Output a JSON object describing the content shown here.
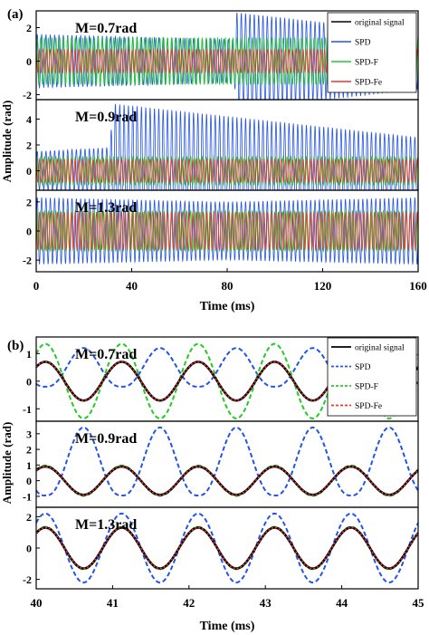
{
  "figure": {
    "colors": {
      "original": "#000000",
      "spd": "#2354e6",
      "spdf": "#22cc22",
      "spdfe": "#ee3333"
    },
    "legend_labels": [
      "original signal",
      "SPD",
      "SPD-F",
      "SPD-Fe"
    ]
  },
  "chart_data": [
    {
      "type": "line",
      "label": "(a)",
      "xlabel": "Time (ms)",
      "ylabel": "Amplitude (rad)",
      "xlim": [
        0,
        160
      ],
      "xticks": [
        "0",
        "40",
        "80",
        "120",
        "160"
      ],
      "legend": [
        "original signal",
        "SPD",
        "SPD-F",
        "SPD-Fe"
      ],
      "legend_position": "top-right",
      "panels": [
        {
          "title": "M=0.7rad",
          "ylim": [
            -2.3,
            3
          ],
          "yticks": [
            "-2",
            "0",
            "2"
          ],
          "series": [
            {
              "name": "SPD",
              "amplitude_envelope": [
                [
                  0,
                  1.6
                ],
                [
                  83,
                  1.3
                ],
                [
                  84,
                  2.9
                ],
                [
                  160,
                  1.7
                ]
              ]
            },
            {
              "name": "SPD-F",
              "amplitude": 1.4
            },
            {
              "name": "SPD-Fe",
              "amplitude": 0.7
            }
          ]
        },
        {
          "title": "M=0.9rad",
          "ylim": [
            -1.5,
            5.5
          ],
          "yticks": [
            "0",
            "2",
            "4"
          ],
          "series": [
            {
              "name": "SPD",
              "amplitude_envelope": [
                [
                  0,
                  1.5
                ],
                [
                  31,
                  1.8
                ],
                [
                  32,
                  5.2
                ],
                [
                  160,
                  2.6
                ]
              ]
            },
            {
              "name": "SPD-F",
              "amplitude": 1.1
            },
            {
              "name": "SPD-Fe",
              "amplitude": 0.9
            }
          ]
        },
        {
          "title": "M=1.3rad",
          "ylim": [
            -2.8,
            2.8
          ],
          "yticks": [
            "-2",
            "0",
            "2"
          ],
          "series": [
            {
              "name": "SPD",
              "amplitude_envelope": [
                [
                  0,
                  2.3
                ],
                [
                  80,
                  2.0
                ],
                [
                  160,
                  2.3
                ]
              ]
            },
            {
              "name": "SPD-F",
              "amplitude": 1.4
            },
            {
              "name": "SPD-Fe",
              "amplitude": 1.3
            }
          ]
        }
      ]
    },
    {
      "type": "line",
      "label": "(b)",
      "xlabel": "Time (ms)",
      "ylabel": "Amplitude (rad)",
      "xlim": [
        40,
        45
      ],
      "xticks": [
        "40",
        "41",
        "42",
        "43",
        "44",
        "45"
      ],
      "legend": [
        "original signal",
        "SPD",
        "SPD-F",
        "SPD-Fe"
      ],
      "legend_position": "top-right",
      "panels": [
        {
          "title": "M=0.7rad",
          "ylim": [
            -1.45,
            1.6
          ],
          "yticks": [
            "-1",
            "0",
            "1"
          ],
          "series": [
            {
              "name": "original signal",
              "amplitude": 0.7
            },
            {
              "name": "SPD",
              "shape": "phase-wrapped",
              "max": 1.2,
              "min": -0.2
            },
            {
              "name": "SPD-F",
              "amplitude": 1.35
            },
            {
              "name": "SPD-Fe",
              "amplitude": 0.7
            }
          ]
        },
        {
          "title": "M=0.9rad",
          "ylim": [
            -1.7,
            3.8
          ],
          "yticks": [
            "-1",
            "0",
            "1",
            "2",
            "3"
          ],
          "series": [
            {
              "name": "original signal",
              "amplitude": 0.9
            },
            {
              "name": "SPD",
              "shape": "phase-wrapped",
              "max": 3.4,
              "min": -0.95
            },
            {
              "name": "SPD-F",
              "amplitude": 0.97
            },
            {
              "name": "SPD-Fe",
              "amplitude": 0.9
            }
          ]
        },
        {
          "title": "M=1.3rad",
          "ylim": [
            -2.6,
            2.6
          ],
          "yticks": [
            "-2",
            "0",
            "2"
          ],
          "series": [
            {
              "name": "original signal",
              "amplitude": 1.3
            },
            {
              "name": "SPD",
              "amplitude": 2.2
            },
            {
              "name": "SPD-F",
              "amplitude": 1.35
            },
            {
              "name": "SPD-Fe",
              "amplitude": 1.3
            }
          ]
        }
      ]
    }
  ]
}
